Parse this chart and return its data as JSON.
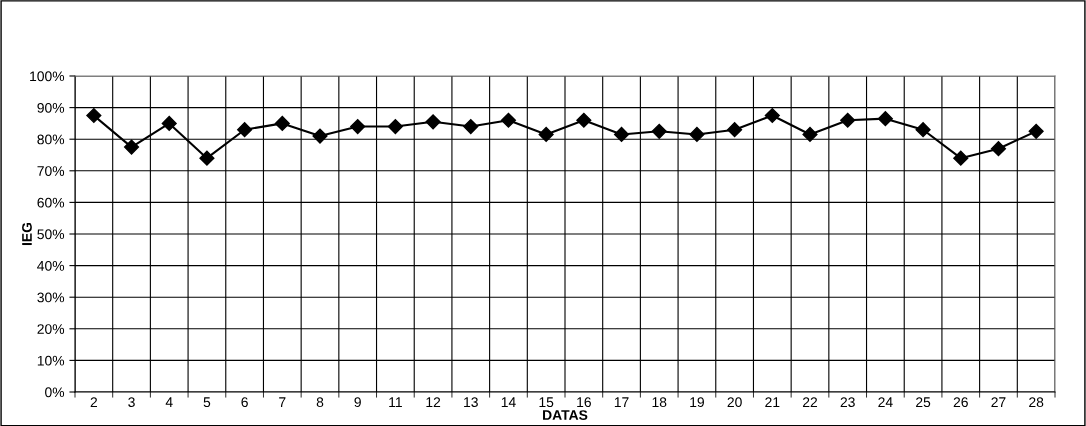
{
  "chart_data": {
    "type": "line",
    "xlabel": "DATAS",
    "ylabel": "IEG",
    "categories": [
      "2",
      "3",
      "4",
      "5",
      "6",
      "7",
      "8",
      "9",
      "11",
      "12",
      "13",
      "14",
      "15",
      "16",
      "17",
      "18",
      "19",
      "20",
      "21",
      "22",
      "23",
      "24",
      "25",
      "26",
      "27",
      "28"
    ],
    "series": [
      {
        "color": "#000000",
        "values": [
          87.5,
          77.5,
          85,
          74,
          83,
          85,
          81,
          84,
          84,
          85.5,
          84,
          86,
          81.5,
          86,
          81.5,
          82.5,
          81.5,
          83,
          87.5,
          81.5,
          86,
          86.5,
          83,
          74,
          77,
          82.5
        ]
      }
    ],
    "ylim": [
      0,
      100
    ],
    "yticks": [
      {
        "value": 0,
        "label": "0%"
      },
      {
        "value": 10,
        "label": "10%"
      },
      {
        "value": 20,
        "label": "20%"
      },
      {
        "value": 30,
        "label": "30%"
      },
      {
        "value": 40,
        "label": "40%"
      },
      {
        "value": 50,
        "label": "50%"
      },
      {
        "value": 60,
        "label": "60%"
      },
      {
        "value": 70,
        "label": "70%"
      },
      {
        "value": 80,
        "label": "80%"
      },
      {
        "value": 90,
        "label": "90%"
      },
      {
        "value": 100,
        "label": "100%"
      }
    ],
    "grid": true,
    "marker": "diamond",
    "line_style": "solid",
    "legend": false
  }
}
